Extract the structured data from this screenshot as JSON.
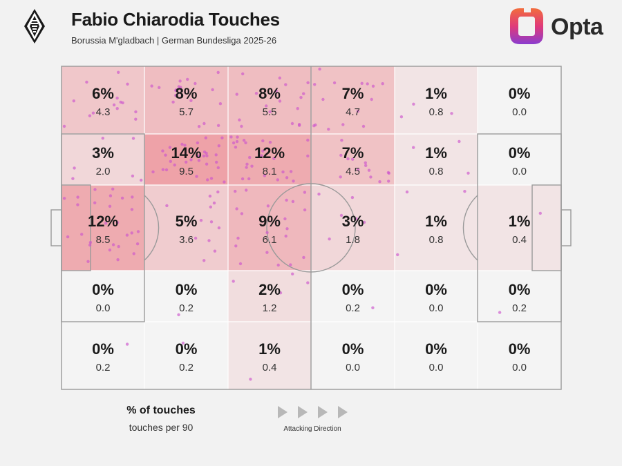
{
  "header": {
    "title": "Fabio Chiarodia Touches",
    "subtitle": "Borussia M'gladbach | German Bundesliga 2025-26",
    "brand": "Opta"
  },
  "legend": {
    "primary": "% of touches",
    "secondary": "touches per 90",
    "direction": "Attacking Direction"
  },
  "colors": {
    "background": "#f2f2f2",
    "heat_base": "#f2eded",
    "heat_max": "#eea2a8",
    "dot": "#cc55cc",
    "pitch_line": "#9a9a9a"
  },
  "chart_data": {
    "type": "heatmap",
    "columns": 6,
    "rows": 5,
    "attacking_direction": "left-to-right",
    "cells": [
      [
        {
          "pct": "6%",
          "per90": "4.3",
          "v": 6
        },
        {
          "pct": "8%",
          "per90": "5.7",
          "v": 8
        },
        {
          "pct": "8%",
          "per90": "5.5",
          "v": 8
        },
        {
          "pct": "7%",
          "per90": "4.7",
          "v": 7
        },
        {
          "pct": "1%",
          "per90": "0.8",
          "v": 1
        },
        {
          "pct": "0%",
          "per90": "0.0",
          "v": 0
        }
      ],
      [
        {
          "pct": "3%",
          "per90": "2.0",
          "v": 3
        },
        {
          "pct": "14%",
          "per90": "9.5",
          "v": 14
        },
        {
          "pct": "12%",
          "per90": "8.1",
          "v": 12
        },
        {
          "pct": "7%",
          "per90": "4.5",
          "v": 7
        },
        {
          "pct": "1%",
          "per90": "0.8",
          "v": 1
        },
        {
          "pct": "0%",
          "per90": "0.0",
          "v": 0
        }
      ],
      [
        {
          "pct": "12%",
          "per90": "8.5",
          "v": 12
        },
        {
          "pct": "5%",
          "per90": "3.6",
          "v": 5
        },
        {
          "pct": "9%",
          "per90": "6.1",
          "v": 9
        },
        {
          "pct": "3%",
          "per90": "1.8",
          "v": 3
        },
        {
          "pct": "1%",
          "per90": "0.8",
          "v": 1
        },
        {
          "pct": "1%",
          "per90": "0.4",
          "v": 1
        }
      ],
      [
        {
          "pct": "0%",
          "per90": "0.0",
          "v": 0
        },
        {
          "pct": "0%",
          "per90": "0.2",
          "v": 0
        },
        {
          "pct": "2%",
          "per90": "1.2",
          "v": 2
        },
        {
          "pct": "0%",
          "per90": "0.2",
          "v": 0
        },
        {
          "pct": "0%",
          "per90": "0.0",
          "v": 0
        },
        {
          "pct": "0%",
          "per90": "0.2",
          "v": 0
        }
      ],
      [
        {
          "pct": "0%",
          "per90": "0.2",
          "v": 0
        },
        {
          "pct": "0%",
          "per90": "0.2",
          "v": 0
        },
        {
          "pct": "1%",
          "per90": "0.4",
          "v": 1
        },
        {
          "pct": "0%",
          "per90": "0.0",
          "v": 0
        },
        {
          "pct": "0%",
          "per90": "0.0",
          "v": 0
        },
        {
          "pct": "0%",
          "per90": "0.0",
          "v": 0
        }
      ]
    ]
  }
}
